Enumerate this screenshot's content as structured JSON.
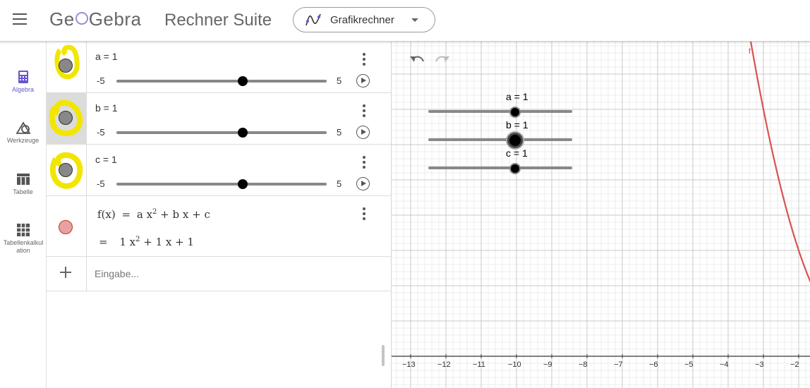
{
  "header": {
    "logo": "GeoGebra",
    "title": "Rechner Suite",
    "app_selector": "Grafikrechner"
  },
  "sidebar": {
    "items": [
      {
        "label": "Algebra",
        "icon": "calculator-icon",
        "active": true
      },
      {
        "label": "Werkzeuge",
        "icon": "tools-icon",
        "active": false
      },
      {
        "label": "Tabelle",
        "icon": "table-icon",
        "active": false
      },
      {
        "label": "Tabellenkalkulation",
        "icon": "spreadsheet-icon",
        "active": false
      }
    ]
  },
  "algebra": {
    "sliders": [
      {
        "definition": "a = 1",
        "min": "-5",
        "max": "5",
        "value": 1
      },
      {
        "definition": "b = 1",
        "min": "-5",
        "max": "5",
        "value": 1
      },
      {
        "definition": "c = 1",
        "min": "-5",
        "max": "5",
        "value": 1
      }
    ],
    "function": {
      "name": "f(x)",
      "eq": "=",
      "def_a": "a x",
      "def_sup": "2",
      "def_rest": " + b x + c",
      "val_eq": "=",
      "val_a": "1 x",
      "val_sup": "2",
      "val_rest": " + 1 x + 1",
      "color": "#e8a0a0"
    },
    "input_placeholder": "Eingabe..."
  },
  "graphics": {
    "sliders": [
      {
        "label": "a = 1"
      },
      {
        "label": "b = 1"
      },
      {
        "label": "c = 1"
      }
    ],
    "x_ticks": [
      "−13",
      "−12",
      "−11",
      "−10",
      "−9",
      "−8",
      "−7",
      "−6",
      "−5",
      "−4",
      "−3",
      "−2"
    ],
    "function_label": "f",
    "curve_color": "#d9534f"
  }
}
